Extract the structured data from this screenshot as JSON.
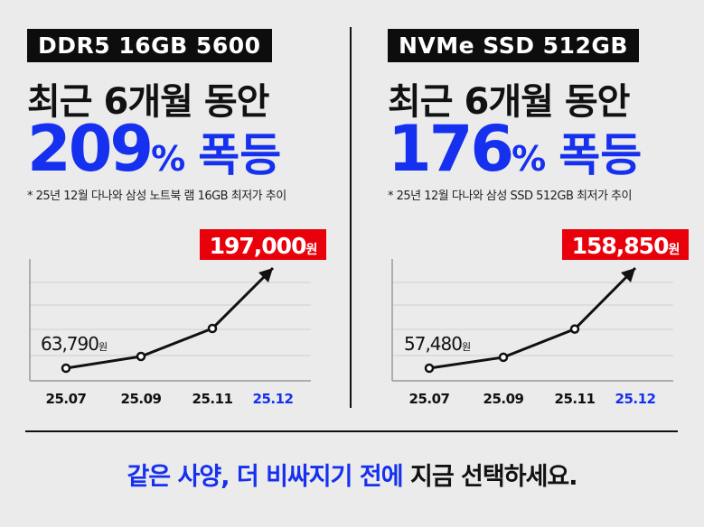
{
  "colors": {
    "accent_blue": "#1530ee",
    "callout_red": "#e8000b",
    "line": "#111111",
    "grid": "#cfcfcf"
  },
  "panels": [
    {
      "tag": "DDR5 16GB 5600",
      "headline": "최근 6개월 동안",
      "percent": "209",
      "percent_sign": "%",
      "surge": "폭등",
      "note": "* 25년 12월 다나와 삼성 노트북 램 16GB 최저가 추이"
    },
    {
      "tag": "NVMe SSD 512GB",
      "headline": "최근 6개월 동안",
      "percent": "176",
      "percent_sign": "%",
      "surge": "폭등",
      "note": "* 25년 12월 다나와 삼성 SSD 512GB 최저가 추이"
    }
  ],
  "footer": {
    "blue": "같은 사양, 더 비싸지기 전에",
    "black": " 지금 선택하세요."
  },
  "chart_data": [
    {
      "type": "line",
      "categories": [
        "25.07",
        "25.09",
        "25.11",
        "25.12"
      ],
      "values": [
        63790,
        79400,
        116600,
        197000
      ],
      "unit": "원",
      "labels": {
        "start": "63,790",
        "end": "197,000"
      },
      "highlight_category": "25.12",
      "grid": true
    },
    {
      "type": "line",
      "categories": [
        "25.07",
        "25.09",
        "25.11",
        "25.12"
      ],
      "values": [
        57480,
        68500,
        97100,
        158850
      ],
      "unit": "원",
      "labels": {
        "start": "57,480",
        "end": "158,850"
      },
      "highlight_category": "25.12",
      "grid": true
    }
  ]
}
